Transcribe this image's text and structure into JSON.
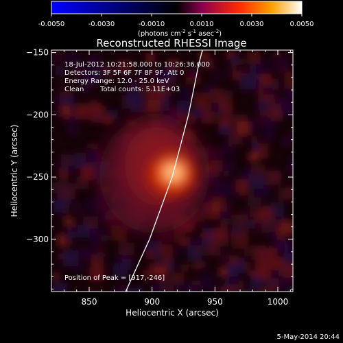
{
  "colorbar": {
    "ticks": [
      "-0.0050",
      "-0.0030",
      "-0.0010",
      "0.0010",
      "0.0030",
      "0.0050"
    ],
    "tick_values": [
      -0.005,
      -0.003,
      -0.001,
      0.001,
      0.003,
      0.005
    ],
    "range": [
      -0.005,
      0.005
    ],
    "units_main": "(photons cm",
    "units_exp1": "-2",
    "units_mid": " s",
    "units_exp2": "-1",
    "units_mid2": " asec",
    "units_exp3": "-2",
    "units_end": ")",
    "colors": [
      "#0000ff",
      "#000000",
      "#8a0050",
      "#ff2a00",
      "#ffa000",
      "#ffffff"
    ]
  },
  "chart_data": {
    "type": "heatmap",
    "title": "Reconstructed RHESSI Image",
    "xlabel": "Heliocentric X (arcsec)",
    "ylabel": "Heliocentric Y (arcsec)",
    "xlim": [
      820,
      1012
    ],
    "ylim": [
      -342,
      -148
    ],
    "x_ticks": [
      850,
      900,
      950,
      1000
    ],
    "y_ticks": [
      -150,
      -200,
      -250,
      -300
    ],
    "x_tick_labels": [
      "850",
      "900",
      "950",
      "1000"
    ],
    "y_tick_labels": [
      "−150",
      "−200",
      "−250",
      "−300"
    ],
    "peak": {
      "x": 917,
      "y": -246
    },
    "limb_line": [
      [
        879,
        -342
      ],
      [
        898,
        -300
      ],
      [
        916,
        -250
      ],
      [
        929,
        -200
      ],
      [
        937,
        -160
      ],
      [
        940,
        -148
      ]
    ],
    "annotations": {
      "time": "18-Jul-2012 10:21:58.000 to 10:26:36.000",
      "detectors": "Detectors: 3F 5F 6F 7F 8F 9F, Att 0",
      "energy": "Energy Range: 12.0 - 25.0 keV",
      "method": "Clean",
      "counts": "Total counts: 5.11E+03",
      "peak_label": "Position of Peak = [917,-246]"
    }
  },
  "footer": {
    "timestamp": "5-May-2014 20:44"
  }
}
